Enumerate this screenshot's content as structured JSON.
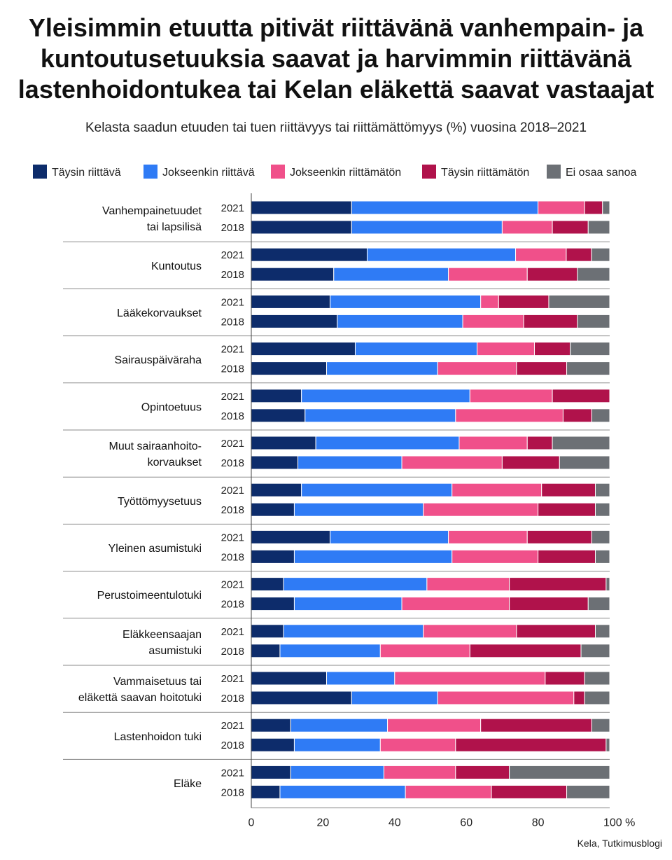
{
  "title_lines": [
    "Yleisimmin etuutta pitivät riittävänä vanhempain- ja",
    "kuntoutusetuuksia saavat ja harvimmin riittävänä",
    "lastenhoidontukea tai Kelan eläkettä saavat vastaajat"
  ],
  "source": "Kela, Tutkimusblogi",
  "chart_data": {
    "type": "bar",
    "orientation": "horizontal",
    "stacked": true,
    "title": "Yleisimmin etuutta pitivät riittävänä vanhempain- ja kuntoutusetuuksia saavat ja harvimmin riittävänä lastenhoidontukea tai Kelan eläkettä saavat vastaajat",
    "subtitle": "Kelasta saadun etuuden tai tuen riittävyys tai riittämättömyys (%) vuosina 2018–2021",
    "x_ticks": [
      0,
      20,
      40,
      60,
      80,
      100
    ],
    "x_unit_suffix": " %",
    "xlim": [
      0,
      100
    ],
    "legend_position": "top",
    "series": [
      {
        "name": "Täysin riittävä",
        "color": "#0d2c6b"
      },
      {
        "name": "Jokseenkin riittävä",
        "color": "#2f7bf5"
      },
      {
        "name": "Jokseenkin riittämätön",
        "color": "#f0508a"
      },
      {
        "name": "Täysin riittämätön",
        "color": "#b0124b"
      },
      {
        "name": "Ei osaa sanoa",
        "color": "#6c7075"
      }
    ],
    "groups": [
      {
        "label": [
          "Vanhempainetuudet",
          "tai lapsilisä"
        ],
        "rows": [
          {
            "year": "2021",
            "values": [
              28,
              52,
              13,
              5,
              2
            ]
          },
          {
            "year": "2018",
            "values": [
              28,
              42,
              14,
              10,
              6
            ]
          }
        ]
      },
      {
        "label": [
          "Kuntoutus"
        ],
        "rows": [
          {
            "year": "2021",
            "values": [
              32,
              41,
              14,
              7,
              5
            ]
          },
          {
            "year": "2018",
            "values": [
              23,
              32,
              22,
              14,
              9
            ]
          }
        ]
      },
      {
        "label": [
          "Lääkekorvaukset"
        ],
        "rows": [
          {
            "year": "2021",
            "values": [
              22,
              42,
              5,
              14,
              17
            ]
          },
          {
            "year": "2018",
            "values": [
              24,
              35,
              17,
              15,
              9
            ]
          }
        ]
      },
      {
        "label": [
          "Sairauspäiväraha"
        ],
        "rows": [
          {
            "year": "2021",
            "values": [
              29,
              34,
              16,
              10,
              11
            ]
          },
          {
            "year": "2018",
            "values": [
              21,
              31,
              22,
              14,
              12
            ]
          }
        ]
      },
      {
        "label": [
          "Opintoetuus"
        ],
        "rows": [
          {
            "year": "2021",
            "values": [
              14,
              47,
              23,
              16,
              0
            ]
          },
          {
            "year": "2018",
            "values": [
              15,
              42,
              30,
              8,
              5
            ]
          }
        ]
      },
      {
        "label": [
          "Muut sairaanhoito-",
          "korvaukset"
        ],
        "rows": [
          {
            "year": "2021",
            "values": [
              18,
              40,
              19,
              7,
              16
            ]
          },
          {
            "year": "2018",
            "values": [
              13,
              29,
              28,
              16,
              14
            ]
          }
        ]
      },
      {
        "label": [
          "Työttömyysetuus"
        ],
        "rows": [
          {
            "year": "2021",
            "values": [
              14,
              42,
              25,
              15,
              4
            ]
          },
          {
            "year": "2018",
            "values": [
              12,
              36,
              32,
              16,
              4
            ]
          }
        ]
      },
      {
        "label": [
          "Yleinen asumistuki"
        ],
        "rows": [
          {
            "year": "2021",
            "values": [
              22,
              33,
              22,
              18,
              5
            ]
          },
          {
            "year": "2018",
            "values": [
              12,
              44,
              24,
              16,
              4
            ]
          }
        ]
      },
      {
        "label": [
          "Perustoimeentulotuki"
        ],
        "rows": [
          {
            "year": "2021",
            "values": [
              9,
              40,
              23,
              27,
              1
            ]
          },
          {
            "year": "2018",
            "values": [
              12,
              30,
              30,
              22,
              6
            ]
          }
        ]
      },
      {
        "label": [
          "Eläkkeensaajan",
          "asumistuki"
        ],
        "rows": [
          {
            "year": "2021",
            "values": [
              9,
              39,
              26,
              22,
              4
            ]
          },
          {
            "year": "2018",
            "values": [
              8,
              28,
              25,
              31,
              8
            ]
          }
        ]
      },
      {
        "label": [
          "Vammaisetuus tai",
          "eläkettä saavan hoitotuki"
        ],
        "rows": [
          {
            "year": "2021",
            "values": [
              21,
              19,
              42,
              11,
              7
            ]
          },
          {
            "year": "2018",
            "values": [
              28,
              24,
              38,
              3,
              7
            ]
          }
        ]
      },
      {
        "label": [
          "Lastenhoidon tuki"
        ],
        "rows": [
          {
            "year": "2021",
            "values": [
              11,
              27,
              26,
              31,
              5
            ]
          },
          {
            "year": "2018",
            "values": [
              12,
              24,
              21,
              42,
              1
            ]
          }
        ]
      },
      {
        "label": [
          "Eläke"
        ],
        "rows": [
          {
            "year": "2021",
            "values": [
              11,
              26,
              20,
              15,
              28
            ]
          },
          {
            "year": "2018",
            "values": [
              8,
              35,
              24,
              21,
              12
            ]
          }
        ]
      }
    ]
  }
}
